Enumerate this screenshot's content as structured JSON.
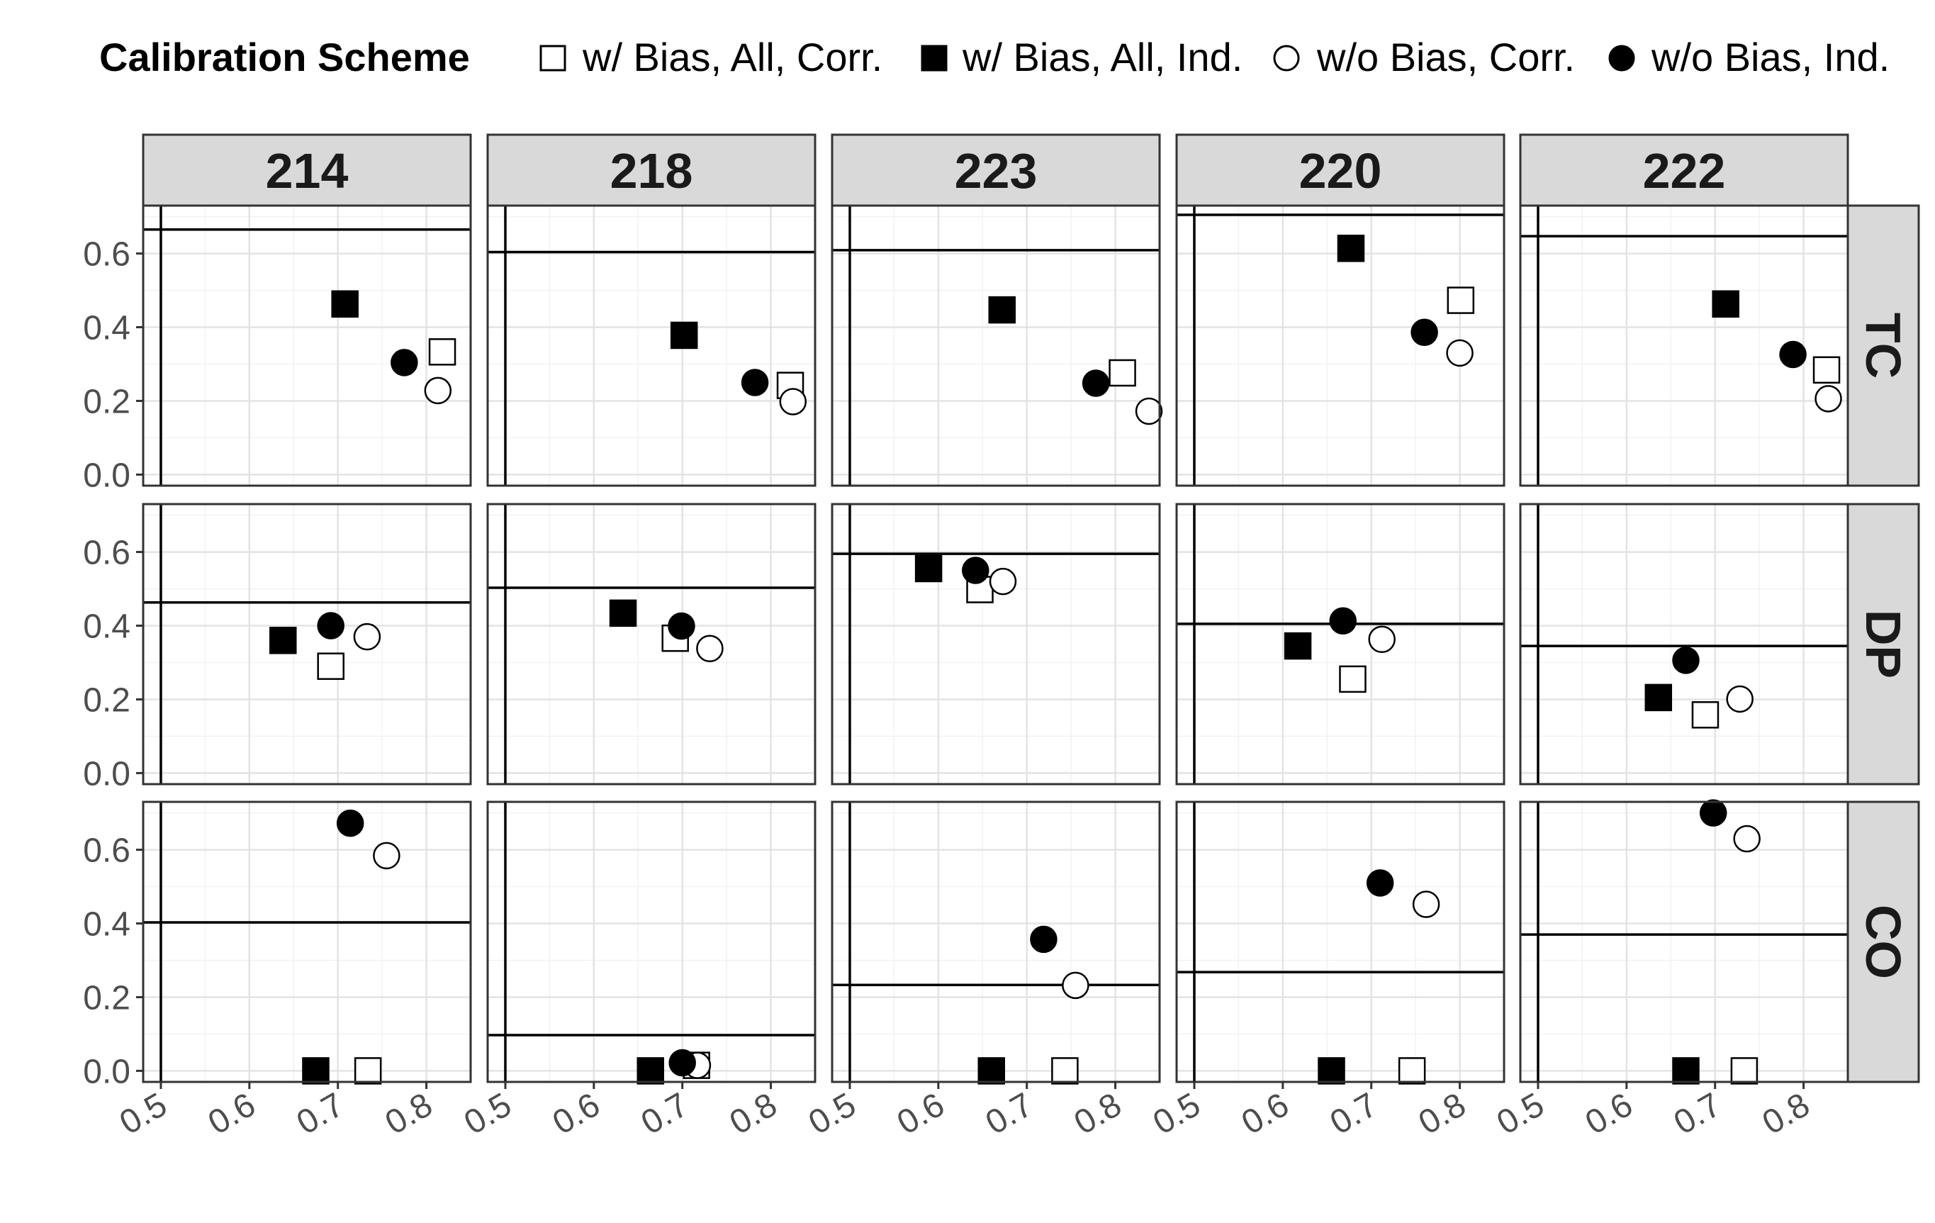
{
  "chart_data": {
    "type": "scatter",
    "legend": {
      "title": "Calibration Scheme",
      "placement": "top",
      "entries": [
        {
          "label": "w/ Bias, All, Corr.",
          "shape": "square",
          "filled": false
        },
        {
          "label": "w/ Bias, All, Ind.",
          "shape": "square",
          "filled": true
        },
        {
          "label": "w/o Bias, Corr.",
          "shape": "circle",
          "filled": false
        },
        {
          "label": "w/o Bias, Ind.",
          "shape": "circle",
          "filled": true
        }
      ]
    },
    "facet_columns": [
      "214",
      "218",
      "223",
      "220",
      "222"
    ],
    "facet_rows": [
      "TC",
      "DP",
      "CO"
    ],
    "xlim": [
      0.48,
      0.85
    ],
    "ylim": [
      -0.03,
      0.73
    ],
    "x_ticks": [
      "0.5",
      "0.6",
      "0.7",
      "0.8"
    ],
    "x_tick_values": [
      0.5,
      0.6,
      0.7,
      0.8
    ],
    "y_ticks": [
      "0.0",
      "0.2",
      "0.4",
      "0.6"
    ],
    "y_tick_values": [
      0,
      0.2,
      0.4,
      0.6
    ],
    "grid": true,
    "reference_vline": 0.5,
    "panels": [
      {
        "row": "TC",
        "col": "214",
        "hline": 0.665,
        "points": [
          [
            0.818,
            0.333
          ],
          [
            0.708,
            0.463
          ],
          [
            0.813,
            0.228
          ],
          [
            0.775,
            0.304
          ]
        ]
      },
      {
        "row": "TC",
        "col": "218",
        "hline": 0.604,
        "points": [
          [
            0.822,
            0.242
          ],
          [
            0.702,
            0.378
          ],
          [
            0.825,
            0.198
          ],
          [
            0.782,
            0.25
          ]
        ]
      },
      {
        "row": "TC",
        "col": "223",
        "hline": 0.609,
        "points": [
          [
            0.808,
            0.276
          ],
          [
            0.672,
            0.447
          ],
          [
            0.838,
            0.172
          ],
          [
            0.778,
            0.248
          ]
        ]
      },
      {
        "row": "TC",
        "col": "220",
        "hline": 0.705,
        "points": [
          [
            0.801,
            0.473
          ],
          [
            0.677,
            0.614
          ],
          [
            0.8,
            0.33
          ],
          [
            0.76,
            0.386
          ]
        ]
      },
      {
        "row": "TC",
        "col": "222",
        "hline": 0.647,
        "points": [
          [
            0.826,
            0.284
          ],
          [
            0.712,
            0.463
          ],
          [
            0.828,
            0.206
          ],
          [
            0.788,
            0.326
          ]
        ]
      },
      {
        "row": "DP",
        "col": "214",
        "hline": 0.463,
        "points": [
          [
            0.692,
            0.29
          ],
          [
            0.638,
            0.36
          ],
          [
            0.733,
            0.37
          ],
          [
            0.692,
            0.4
          ]
        ]
      },
      {
        "row": "DP",
        "col": "218",
        "hline": 0.503,
        "points": [
          [
            0.692,
            0.366
          ],
          [
            0.633,
            0.434
          ],
          [
            0.731,
            0.338
          ],
          [
            0.699,
            0.399
          ]
        ]
      },
      {
        "row": "DP",
        "col": "223",
        "hline": 0.595,
        "points": [
          [
            0.647,
            0.498
          ],
          [
            0.589,
            0.555
          ],
          [
            0.673,
            0.52
          ],
          [
            0.642,
            0.55
          ]
        ]
      },
      {
        "row": "DP",
        "col": "220",
        "hline": 0.405,
        "points": [
          [
            0.679,
            0.255
          ],
          [
            0.617,
            0.345
          ],
          [
            0.712,
            0.363
          ],
          [
            0.668,
            0.413
          ]
        ]
      },
      {
        "row": "DP",
        "col": "222",
        "hline": 0.345,
        "points": [
          [
            0.689,
            0.158
          ],
          [
            0.636,
            0.205
          ],
          [
            0.728,
            0.201
          ],
          [
            0.667,
            0.306
          ]
        ]
      },
      {
        "row": "CO",
        "col": "214",
        "hline": 0.403,
        "points": [
          [
            0.734,
            0.0
          ],
          [
            0.675,
            0.0
          ],
          [
            0.755,
            0.584
          ],
          [
            0.714,
            0.672
          ]
        ]
      },
      {
        "row": "CO",
        "col": "218",
        "hline": 0.097,
        "points": [
          [
            0.716,
            0.015
          ],
          [
            0.664,
            0.0
          ],
          [
            0.717,
            0.015
          ],
          [
            0.7,
            0.022
          ]
        ]
      },
      {
        "row": "CO",
        "col": "223",
        "hline": 0.233,
        "points": [
          [
            0.743,
            0.0
          ],
          [
            0.66,
            0.0
          ],
          [
            0.755,
            0.232
          ],
          [
            0.719,
            0.357
          ]
        ]
      },
      {
        "row": "CO",
        "col": "220",
        "hline": 0.268,
        "points": [
          [
            0.746,
            0.0
          ],
          [
            0.655,
            0.0
          ],
          [
            0.762,
            0.452
          ],
          [
            0.71,
            0.51
          ]
        ]
      },
      {
        "row": "CO",
        "col": "222",
        "hline": 0.37,
        "points": [
          [
            0.733,
            0.0
          ],
          [
            0.667,
            0.0
          ],
          [
            0.736,
            0.63
          ],
          [
            0.698,
            0.7
          ]
        ]
      }
    ]
  }
}
